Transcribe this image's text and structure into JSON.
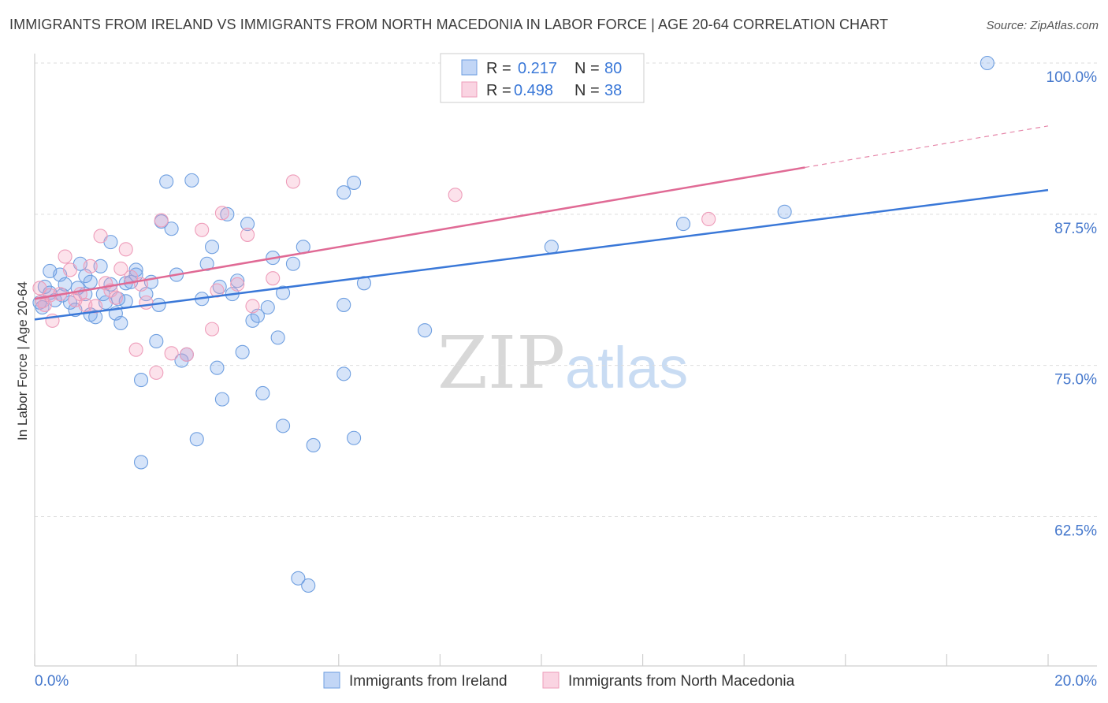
{
  "title": "IMMIGRANTS FROM IRELAND VS IMMIGRANTS FROM NORTH MACEDONIA IN LABOR FORCE | AGE 20-64 CORRELATION CHART",
  "source": "Source: ZipAtlas.com",
  "watermark": {
    "zip": "ZIP",
    "atlas": "atlas"
  },
  "colors": {
    "ireland_fill": "rgba(120,165,235,0.30)",
    "ireland_stroke": "#6f9fe0",
    "ireland_line": "#3a78d8",
    "macedonia_fill": "rgba(245,160,190,0.30)",
    "macedonia_stroke": "#ee9dba",
    "macedonia_line": "#e06a95",
    "tick_text": "#4477cc",
    "grid": "#dddddd"
  },
  "legend": {
    "rows": [
      {
        "r_label": "R =",
        "r_value": "0.217",
        "n_label": "N =",
        "n_value": "80",
        "series": "ireland"
      },
      {
        "r_label": "R =",
        "r_value": "0.498",
        "n_label": "N =",
        "n_value": "38",
        "series": "macedonia"
      }
    ]
  },
  "chart_data": {
    "type": "scatter",
    "title": "IMMIGRANTS FROM IRELAND VS IMMIGRANTS FROM NORTH MACEDONIA IN LABOR FORCE | AGE 20-64 CORRELATION CHART",
    "xlabel": "",
    "ylabel": "In Labor Force | Age 20-64",
    "xlim": [
      0,
      20
    ],
    "ylim": [
      50,
      101
    ],
    "x_tick_labels": [
      "0.0%",
      "20.0%"
    ],
    "y_ticks": [
      62.5,
      75.0,
      87.5,
      100.0
    ],
    "y_tick_labels": [
      "62.5%",
      "75.0%",
      "87.5%",
      "100.0%"
    ],
    "grid": true,
    "series": [
      {
        "name": "Immigrants from Ireland",
        "key": "ireland",
        "trend": {
          "x": [
            0,
            20
          ],
          "y": [
            78.8,
            89.5
          ]
        },
        "points": [
          [
            0.1,
            80.2
          ],
          [
            0.2,
            81.5
          ],
          [
            0.3,
            82.8
          ],
          [
            0.3,
            81.0
          ],
          [
            0.4,
            80.4
          ],
          [
            0.5,
            82.5
          ],
          [
            0.6,
            81.7
          ],
          [
            0.7,
            80.2
          ],
          [
            0.8,
            79.6
          ],
          [
            0.9,
            83.4
          ],
          [
            1.0,
            82.4
          ],
          [
            1.0,
            80.9
          ],
          [
            1.1,
            79.2
          ],
          [
            1.1,
            81.9
          ],
          [
            1.2,
            79.0
          ],
          [
            1.3,
            83.2
          ],
          [
            1.4,
            80.2
          ],
          [
            1.5,
            81.7
          ],
          [
            1.5,
            85.2
          ],
          [
            1.6,
            79.3
          ],
          [
            1.7,
            78.5
          ],
          [
            1.8,
            80.3
          ],
          [
            1.8,
            81.8
          ],
          [
            1.9,
            81.9
          ],
          [
            2.0,
            82.9
          ],
          [
            2.0,
            82.5
          ],
          [
            2.1,
            73.8
          ],
          [
            2.2,
            80.9
          ],
          [
            2.3,
            81.9
          ],
          [
            2.4,
            77.0
          ],
          [
            2.5,
            86.9
          ],
          [
            2.6,
            90.2
          ],
          [
            2.7,
            86.3
          ],
          [
            2.8,
            82.5
          ],
          [
            2.9,
            75.4
          ],
          [
            3.0,
            75.9
          ],
          [
            3.1,
            90.3
          ],
          [
            3.2,
            68.9
          ],
          [
            3.3,
            80.5
          ],
          [
            3.4,
            83.4
          ],
          [
            3.5,
            84.8
          ],
          [
            3.6,
            74.8
          ],
          [
            3.7,
            72.2
          ],
          [
            3.8,
            87.5
          ],
          [
            3.9,
            80.9
          ],
          [
            4.0,
            82.0
          ],
          [
            4.1,
            76.1
          ],
          [
            4.2,
            86.7
          ],
          [
            4.3,
            78.7
          ],
          [
            4.4,
            79.1
          ],
          [
            4.5,
            72.7
          ],
          [
            4.6,
            79.8
          ],
          [
            4.7,
            83.9
          ],
          [
            4.8,
            77.3
          ],
          [
            4.9,
            81.0
          ],
          [
            4.9,
            70.0
          ],
          [
            5.1,
            83.4
          ],
          [
            5.3,
            84.8
          ],
          [
            5.5,
            68.4
          ],
          [
            6.1,
            80.0
          ],
          [
            6.1,
            89.3
          ],
          [
            6.1,
            74.3
          ],
          [
            6.3,
            90.1
          ],
          [
            6.3,
            69.0
          ],
          [
            6.5,
            81.8
          ],
          [
            7.7,
            77.9
          ],
          [
            2.1,
            67.0
          ],
          [
            5.2,
            57.4
          ],
          [
            5.4,
            56.8
          ],
          [
            10.2,
            84.8
          ],
          [
            12.8,
            86.7
          ],
          [
            14.8,
            87.7
          ],
          [
            18.8,
            100.0
          ],
          [
            0.15,
            79.8
          ],
          [
            0.55,
            80.8
          ],
          [
            0.85,
            81.4
          ],
          [
            1.35,
            80.9
          ],
          [
            1.65,
            80.5
          ],
          [
            2.45,
            80.0
          ],
          [
            3.65,
            81.5
          ]
        ]
      },
      {
        "name": "Immigrants from North Macedonia",
        "key": "macedonia",
        "trend": {
          "x": [
            0,
            20
          ],
          "y": [
            80.5,
            94.8
          ]
        },
        "trend_solid_until_x": 15.2,
        "points": [
          [
            0.1,
            81.4
          ],
          [
            0.2,
            80.0
          ],
          [
            0.3,
            80.8
          ],
          [
            0.35,
            78.7
          ],
          [
            0.5,
            80.9
          ],
          [
            0.6,
            84.0
          ],
          [
            0.7,
            82.9
          ],
          [
            0.8,
            80.4
          ],
          [
            0.9,
            80.9
          ],
          [
            1.0,
            80.0
          ],
          [
            1.1,
            83.2
          ],
          [
            1.2,
            79.9
          ],
          [
            1.3,
            85.7
          ],
          [
            1.4,
            81.8
          ],
          [
            1.5,
            81.2
          ],
          [
            1.6,
            80.6
          ],
          [
            1.7,
            83.0
          ],
          [
            1.8,
            84.6
          ],
          [
            1.9,
            82.3
          ],
          [
            2.0,
            76.3
          ],
          [
            2.1,
            81.7
          ],
          [
            2.2,
            80.2
          ],
          [
            2.4,
            74.4
          ],
          [
            2.5,
            87.0
          ],
          [
            2.7,
            76.0
          ],
          [
            3.0,
            75.9
          ],
          [
            3.3,
            86.2
          ],
          [
            3.5,
            78.0
          ],
          [
            3.6,
            81.2
          ],
          [
            3.7,
            87.6
          ],
          [
            4.0,
            81.7
          ],
          [
            4.2,
            85.8
          ],
          [
            4.3,
            79.9
          ],
          [
            4.7,
            82.2
          ],
          [
            5.1,
            90.2
          ],
          [
            8.3,
            89.1
          ],
          [
            13.3,
            87.1
          ],
          [
            0.15,
            80.3
          ]
        ]
      }
    ]
  },
  "bottom_legend": [
    {
      "label": "Immigrants from Ireland",
      "series": "ireland"
    },
    {
      "label": "Immigrants from North Macedonia",
      "series": "macedonia"
    }
  ]
}
